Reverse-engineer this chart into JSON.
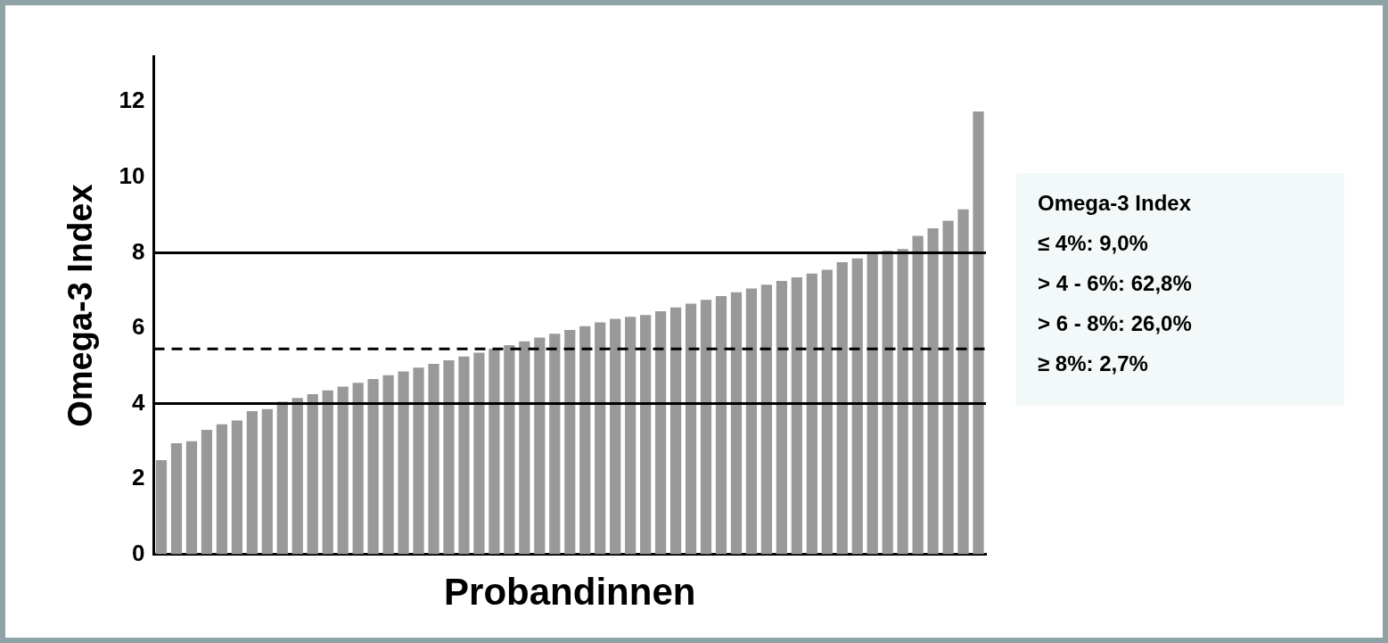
{
  "chart_data": {
    "type": "bar",
    "xlabel": "Probandinnen",
    "ylabel": "Omega-3 Index",
    "categories": [
      null,
      null,
      null,
      null,
      null,
      null,
      null,
      null,
      null,
      null,
      null,
      null,
      null,
      null,
      null,
      null,
      null,
      null,
      null,
      null,
      null,
      null,
      null,
      null,
      null,
      null,
      null,
      null,
      null,
      null,
      null,
      null,
      null,
      null,
      null,
      null,
      null,
      null,
      null,
      null,
      null,
      null,
      null,
      null,
      null,
      null,
      null,
      null,
      null,
      null,
      null,
      null,
      null,
      null,
      null
    ],
    "values": [
      2.5,
      2.95,
      3.0,
      3.3,
      3.45,
      3.55,
      3.8,
      3.85,
      4.05,
      4.15,
      4.25,
      4.35,
      4.45,
      4.55,
      4.65,
      4.75,
      4.85,
      4.95,
      5.05,
      5.15,
      5.25,
      5.35,
      5.45,
      5.55,
      5.65,
      5.75,
      5.85,
      5.95,
      6.05,
      6.15,
      6.25,
      6.3,
      6.35,
      6.45,
      6.55,
      6.65,
      6.75,
      6.85,
      6.95,
      7.05,
      7.15,
      7.25,
      7.35,
      7.45,
      7.55,
      7.75,
      7.85,
      8.0,
      8.05,
      8.1,
      8.45,
      8.65,
      8.85,
      9.15,
      11.75
    ],
    "color": "#999999",
    "ylim": [
      0,
      13.2
    ],
    "yticks": [
      0,
      2,
      4,
      6,
      8,
      10,
      12
    ],
    "grid": false,
    "legend": false,
    "tick_labels": "y",
    "ref_lines": [
      {
        "axis": "y",
        "value": 8,
        "color": "#000000",
        "line_style": "solid"
      },
      {
        "axis": "y",
        "value": 4,
        "color": "#000000",
        "line_style": "solid"
      },
      {
        "axis": "y",
        "value": 5.45,
        "color": "#000000",
        "line_style": "dashed"
      }
    ],
    "annotations": [
      "Omega-3 Index",
      "≤ 4%: 9,0%",
      "> 4 - 6%: 62,8%",
      "> 6 - 8%: 26,0%",
      "≥ 8%: 2,7%"
    ]
  }
}
